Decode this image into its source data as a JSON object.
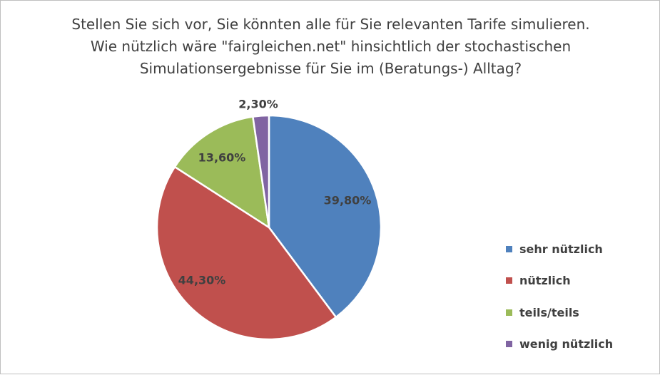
{
  "chart_data": {
    "type": "pie",
    "title_lines": [
      "Stellen Sie sich vor, Sie könnten alle für Sie relevanten Tarife simulieren.",
      "Wie nützlich wäre \"fairgleichen.net\" hinsichtlich der stochastischen",
      "Simulationsergebnisse für Sie im (Beratungs-) Alltag?"
    ],
    "categories": [
      "sehr nützlich",
      "nützlich",
      "teils/teils",
      "wenig nützlich"
    ],
    "values": [
      39.8,
      44.3,
      13.6,
      2.3
    ],
    "data_labels": [
      "39,80%",
      "44,30%",
      "13,60%",
      "2,30%"
    ],
    "colors": [
      "#4F81BD",
      "#C0504D",
      "#9BBB59",
      "#8064A2"
    ],
    "start_angle_deg": 0,
    "direction": "clockwise",
    "legend_position": "right"
  }
}
